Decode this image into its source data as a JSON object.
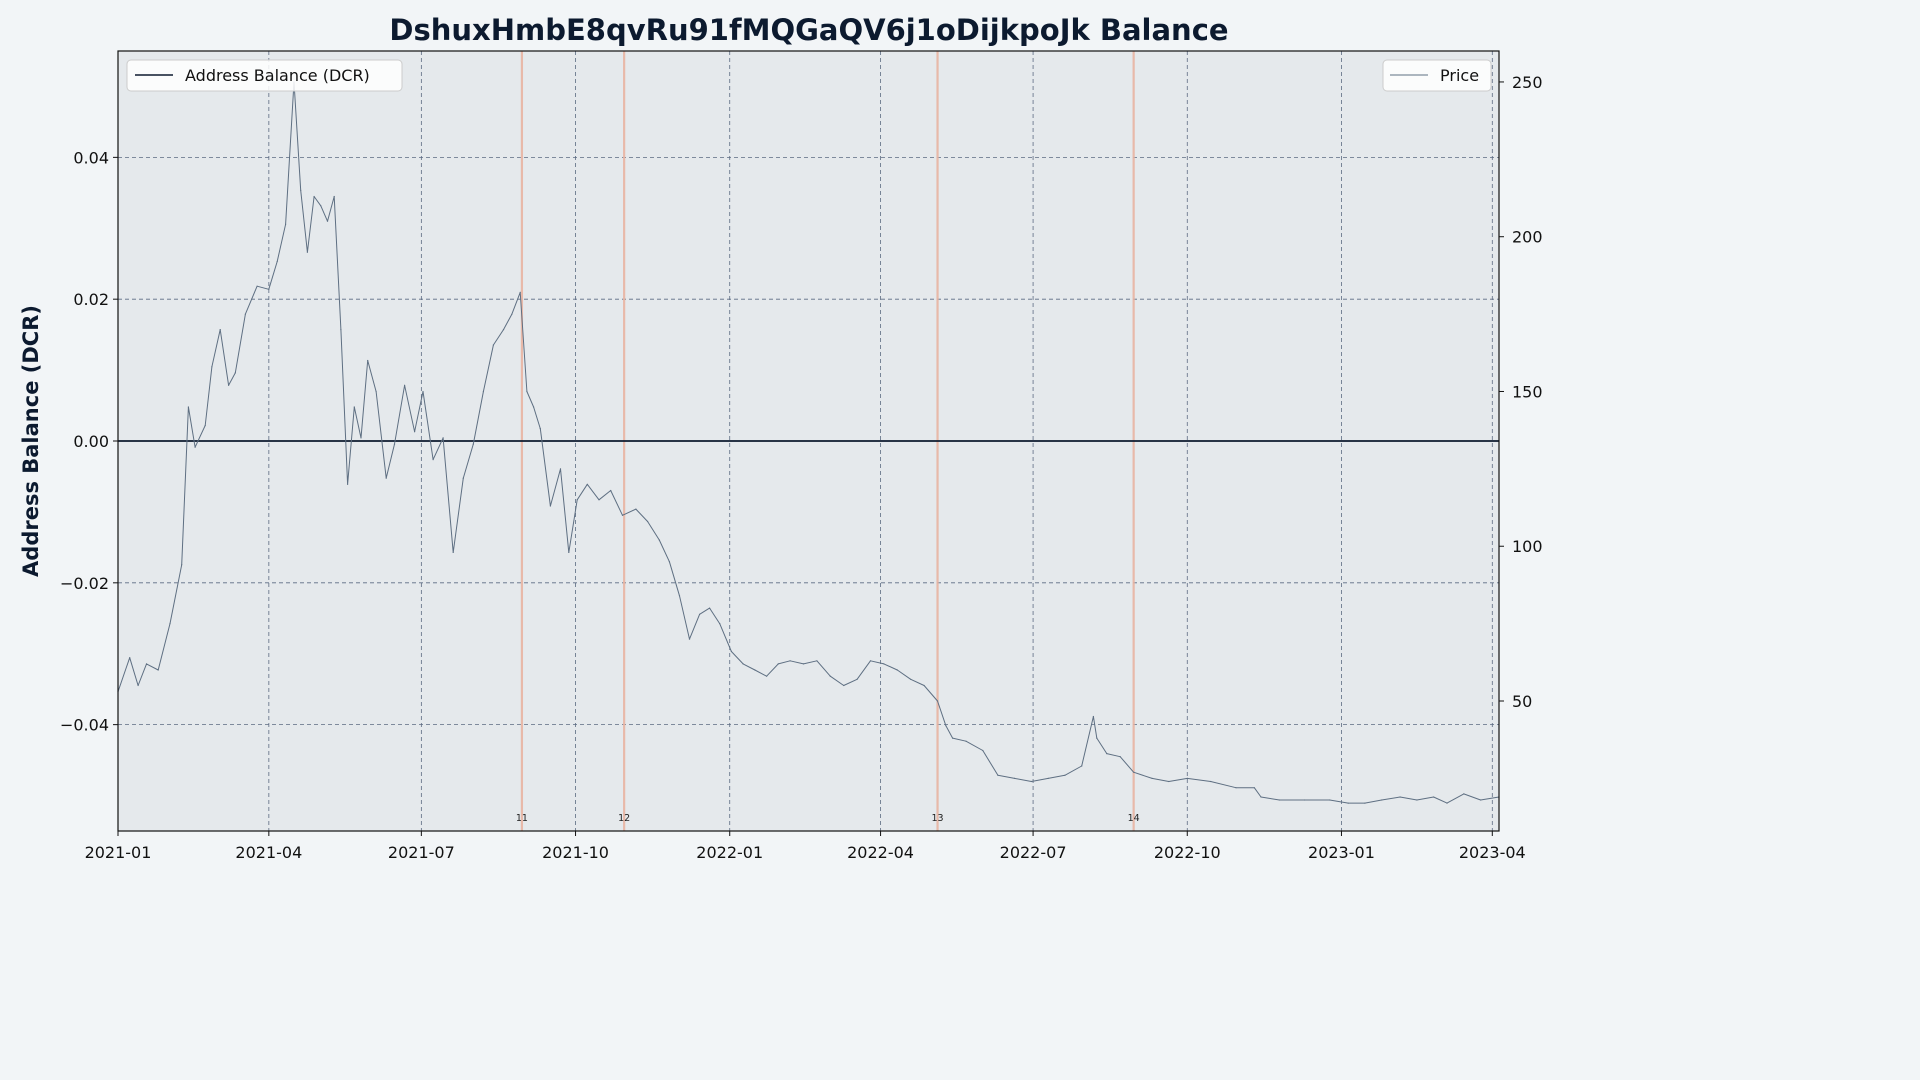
{
  "chart_data": {
    "type": "line",
    "title": "DshuxHmbE8qvRu91fMQGaQV6j1oDijkpoJk Balance",
    "ylabel": "Address Balance (DCR)",
    "ylabel_right": "",
    "xlim": [
      "2021-01-01",
      "2023-04-05"
    ],
    "ylim": [
      -0.055,
      0.055
    ],
    "y2lim": [
      8,
      260
    ],
    "grid": true,
    "x_ticks": [
      "2021-01",
      "2021-04",
      "2021-07",
      "2021-10",
      "2022-01",
      "2022-04",
      "2022-07",
      "2022-10",
      "2023-01",
      "2023-04"
    ],
    "y_ticks": [
      -0.04,
      -0.02,
      0.0,
      0.02,
      0.04
    ],
    "y_tick_labels": [
      "−0.04",
      "−0.02",
      "0.00",
      "0.02",
      "0.04"
    ],
    "y2_ticks": [
      50,
      100,
      150,
      200,
      250
    ],
    "y2_tick_labels": [
      "50",
      "100",
      "150",
      "200",
      "250"
    ],
    "legend_left": {
      "placement": "top-left",
      "entry": "Address Balance (DCR)",
      "color": "#0c1a2f"
    },
    "legend_right": {
      "placement": "top-right",
      "entry": "Price",
      "color": "#5e6f82"
    },
    "colors": {
      "balance": "#0c1a2f",
      "price": "#5e6f82",
      "event": "#e8b4a2",
      "plot_bg": "#e5e9ec",
      "page_bg": "#f2f5f7"
    },
    "events": [
      {
        "label": "11",
        "date": "2021-08-30"
      },
      {
        "label": "12",
        "date": "2021-10-30"
      },
      {
        "label": "13",
        "date": "2022-05-05"
      },
      {
        "label": "14",
        "date": "2022-08-30"
      }
    ],
    "series": [
      {
        "name": "Address Balance (DCR)",
        "axis": "left",
        "x": [
          "2021-01-01",
          "2023-04-05"
        ],
        "y": [
          0.0,
          0.0
        ]
      },
      {
        "name": "Price",
        "axis": "right",
        "x": [
          "2021-01-01",
          "2021-01-08",
          "2021-01-13",
          "2021-01-18",
          "2021-01-25",
          "2021-02-01",
          "2021-02-08",
          "2021-02-12",
          "2021-02-16",
          "2021-02-22",
          "2021-02-26",
          "2021-03-03",
          "2021-03-08",
          "2021-03-12",
          "2021-03-18",
          "2021-03-25",
          "2021-04-01",
          "2021-04-06",
          "2021-04-11",
          "2021-04-16",
          "2021-04-20",
          "2021-04-24",
          "2021-04-28",
          "2021-05-02",
          "2021-05-06",
          "2021-05-10",
          "2021-05-14",
          "2021-05-18",
          "2021-05-22",
          "2021-05-26",
          "2021-05-30",
          "2021-06-04",
          "2021-06-10",
          "2021-06-15",
          "2021-06-21",
          "2021-06-27",
          "2021-07-02",
          "2021-07-08",
          "2021-07-14",
          "2021-07-20",
          "2021-07-26",
          "2021-08-01",
          "2021-08-07",
          "2021-08-13",
          "2021-08-19",
          "2021-08-24",
          "2021-08-29",
          "2021-09-02",
          "2021-09-06",
          "2021-09-10",
          "2021-09-16",
          "2021-09-22",
          "2021-09-27",
          "2021-10-02",
          "2021-10-08",
          "2021-10-15",
          "2021-10-22",
          "2021-10-29",
          "2021-11-06",
          "2021-11-13",
          "2021-11-20",
          "2021-11-26",
          "2021-12-02",
          "2021-12-08",
          "2021-12-14",
          "2021-12-20",
          "2021-12-26",
          "2022-01-02",
          "2022-01-09",
          "2022-01-16",
          "2022-01-23",
          "2022-01-30",
          "2022-02-06",
          "2022-02-14",
          "2022-02-22",
          "2022-03-02",
          "2022-03-10",
          "2022-03-18",
          "2022-03-26",
          "2022-04-03",
          "2022-04-11",
          "2022-04-19",
          "2022-04-27",
          "2022-05-05",
          "2022-05-10",
          "2022-05-14",
          "2022-05-22",
          "2022-06-01",
          "2022-06-10",
          "2022-06-20",
          "2022-06-30",
          "2022-07-10",
          "2022-07-20",
          "2022-07-30",
          "2022-08-06",
          "2022-08-08",
          "2022-08-14",
          "2022-08-22",
          "2022-08-30",
          "2022-09-10",
          "2022-09-20",
          "2022-10-01",
          "2022-10-15",
          "2022-10-30",
          "2022-11-10",
          "2022-11-14",
          "2022-11-25",
          "2022-12-10",
          "2022-12-25",
          "2023-01-05",
          "2023-01-15",
          "2023-01-25",
          "2023-02-05",
          "2023-02-15",
          "2023-02-25",
          "2023-03-05",
          "2023-03-15",
          "2023-03-25",
          "2023-04-05"
        ],
        "y": [
          53,
          64,
          55,
          62,
          60,
          75,
          94,
          145,
          132,
          139,
          158,
          170,
          152,
          156,
          175,
          184,
          183,
          192,
          204,
          250,
          215,
          195,
          213,
          210,
          205,
          213,
          170,
          120,
          145,
          135,
          160,
          150,
          122,
          133,
          152,
          137,
          150,
          128,
          135,
          98,
          122,
          133,
          150,
          165,
          170,
          175,
          182,
          150,
          145,
          138,
          113,
          125,
          98,
          115,
          120,
          115,
          118,
          110,
          112,
          108,
          102,
          95,
          84,
          70,
          78,
          80,
          75,
          66,
          62,
          60,
          58,
          62,
          63,
          62,
          63,
          58,
          55,
          57,
          63,
          62,
          60,
          57,
          55,
          50,
          42,
          38,
          37,
          34,
          26,
          25,
          24,
          25,
          26,
          29,
          45,
          38,
          33,
          32,
          27,
          25,
          24,
          25,
          24,
          22,
          22,
          19,
          18,
          18,
          18,
          17,
          17,
          18,
          19,
          18,
          19,
          17,
          20,
          18,
          19
        ]
      }
    ]
  }
}
